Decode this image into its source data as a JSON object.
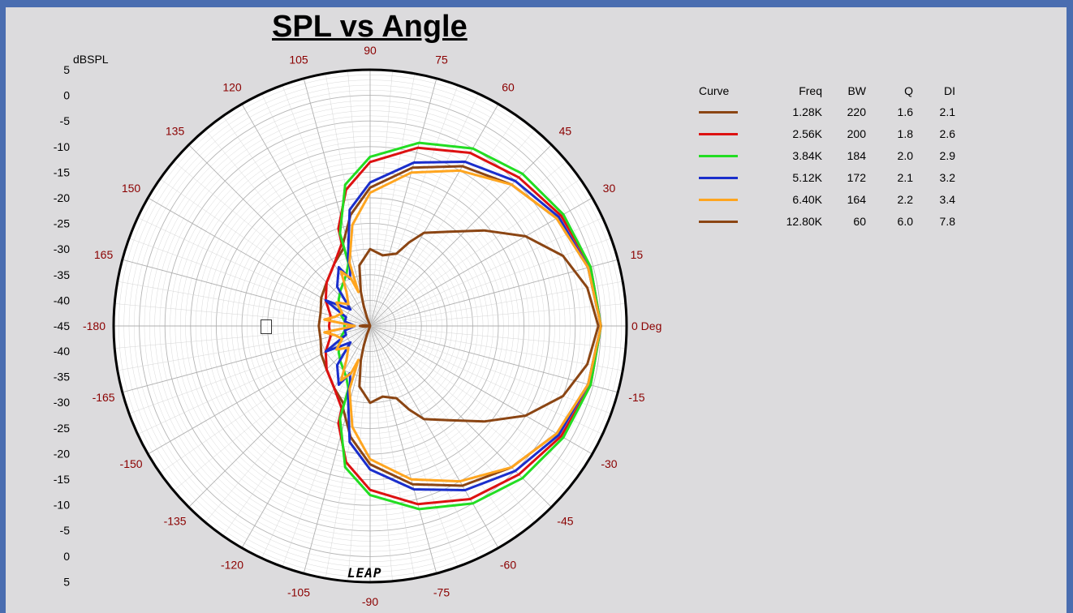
{
  "chart_data": {
    "type": "polar",
    "title": "SPL vs Angle",
    "radial_unit": "dBSPL",
    "radial_range": [
      -45,
      5
    ],
    "radial_ticks_top": [
      "5",
      "0",
      "-5",
      "-10",
      "-15",
      "-20",
      "-25",
      "-30",
      "-35",
      "-40",
      "-45"
    ],
    "radial_ticks_bottom": [
      "-40",
      "-35",
      "-30",
      "-25",
      "-20",
      "-15",
      "-10",
      "-5",
      "0",
      "5"
    ],
    "angle_labels": [
      {
        "angle": 0,
        "text": "0 Deg"
      },
      {
        "angle": 15,
        "text": "15"
      },
      {
        "angle": 30,
        "text": "30"
      },
      {
        "angle": 45,
        "text": "45"
      },
      {
        "angle": 60,
        "text": "60"
      },
      {
        "angle": 75,
        "text": "75"
      },
      {
        "angle": 90,
        "text": "90"
      },
      {
        "angle": 105,
        "text": "105"
      },
      {
        "angle": 120,
        "text": "120"
      },
      {
        "angle": 135,
        "text": "135"
      },
      {
        "angle": 150,
        "text": "150"
      },
      {
        "angle": 165,
        "text": "165"
      },
      {
        "angle": 180,
        "text": "-180"
      },
      {
        "angle": -15,
        "text": "-15"
      },
      {
        "angle": -30,
        "text": "-30"
      },
      {
        "angle": -45,
        "text": "-45"
      },
      {
        "angle": -60,
        "text": "-60"
      },
      {
        "angle": -75,
        "text": "-75"
      },
      {
        "angle": -90,
        "text": "-90"
      },
      {
        "angle": -105,
        "text": "-105"
      },
      {
        "angle": -120,
        "text": "-120"
      },
      {
        "angle": -135,
        "text": "-135"
      },
      {
        "angle": -150,
        "text": "-150"
      },
      {
        "angle": -165,
        "text": "-165"
      }
    ],
    "legend_headers": [
      "Curve",
      "Freq",
      "BW",
      "Q",
      "DI"
    ],
    "series": [
      {
        "color": "#8b4513",
        "freq": "1.28K",
        "bw": "220",
        "q": "1.6",
        "di": "2.1",
        "angles": [
          0,
          15,
          30,
          45,
          60,
          75,
          90,
          100,
          108,
          109,
          120,
          135,
          150,
          165,
          180
        ],
        "db": [
          0,
          -1,
          -3,
          -6,
          -9,
          -13,
          -18,
          -23,
          -28,
          -29,
          -31,
          -33,
          -34,
          -35,
          -35
        ]
      },
      {
        "color": "#dd1111",
        "freq": "2.56K",
        "bw": "200",
        "q": "1.8",
        "di": "2.6",
        "angles": [
          0,
          15,
          30,
          45,
          60,
          75,
          90,
          100,
          108,
          109,
          120,
          135,
          150,
          165,
          180
        ],
        "db": [
          0,
          -0.5,
          -2,
          -4,
          -6,
          -9,
          -13,
          -18,
          -25,
          -28,
          -31,
          -33,
          -35,
          -37,
          -37
        ]
      },
      {
        "color": "#22dd22",
        "freq": "3.84K",
        "bw": "184",
        "q": "2.0",
        "di": "2.9",
        "angles": [
          0,
          15,
          30,
          45,
          60,
          75,
          90,
          100,
          108,
          109,
          115,
          130,
          140,
          150,
          160,
          170,
          180
        ],
        "db": [
          0,
          -0.5,
          -1.5,
          -3,
          -5,
          -8,
          -12,
          -17,
          -26,
          -32,
          -34,
          -36,
          -37,
          -38,
          -39,
          -40,
          -40
        ]
      },
      {
        "color": "#1a2ecc",
        "freq": "5.12K",
        "bw": "172",
        "q": "2.1",
        "di": "3.2",
        "angles": [
          0,
          15,
          30,
          45,
          60,
          75,
          90,
          100,
          108,
          109,
          113,
          118,
          130,
          140,
          150,
          160,
          170,
          180
        ],
        "db": [
          0,
          -1,
          -2.5,
          -5,
          -8,
          -12,
          -17,
          -22,
          -31,
          -33,
          -35,
          -32,
          -35,
          -40,
          -35,
          -40,
          -40,
          -42
        ]
      },
      {
        "color": "#ffa51f",
        "freq": "6.40K",
        "bw": "164",
        "q": "2.2",
        "di": "3.4",
        "angles": [
          0,
          15,
          30,
          45,
          60,
          75,
          90,
          100,
          108,
          109,
          112,
          118,
          125,
          135,
          145,
          155,
          165,
          172,
          180
        ],
        "db": [
          0,
          -1,
          -3,
          -6,
          -10,
          -14,
          -19,
          -25,
          -32,
          -38,
          -35,
          -33,
          -37,
          -39,
          -37,
          -39,
          -38,
          -36,
          -42
        ]
      },
      {
        "color": "#8b4513",
        "freq": "12.80K",
        "bw": "60",
        "q": "6.0",
        "di": "7.8",
        "angles": [
          0,
          10,
          20,
          30,
          40,
          50,
          60,
          65,
          70,
          80,
          90,
          100,
          105,
          108,
          110,
          130,
          150,
          165,
          172,
          180
        ],
        "db": [
          -0.5,
          -2,
          -5,
          -10,
          -16,
          -21,
          -24,
          -27,
          -30,
          -31,
          -30,
          -33,
          -38,
          -41,
          -43,
          -45,
          -45,
          -45,
          -44,
          -43
        ]
      }
    ]
  },
  "logo_text": "LEAP"
}
